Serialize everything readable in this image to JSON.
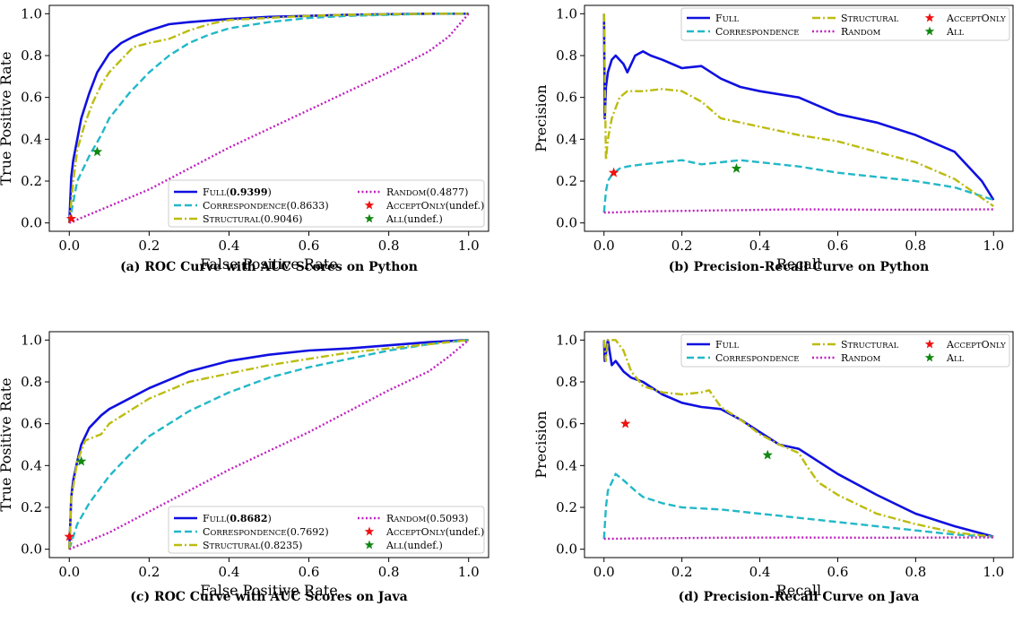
{
  "colors": {
    "Full": "#1010e0",
    "Correspondence": "#22b8c8",
    "Structural": "#bcbc10",
    "Random": "#c020c0",
    "AcceptOnly": "#ee1111",
    "All": "#118811"
  },
  "chart_data": [
    {
      "id": "a",
      "type": "line",
      "caption": "(a) ROC Curve with AUC Scores on Python",
      "xlabel": "False Positive Rate",
      "ylabel": "True Positive Rate",
      "xlim": [
        -0.05,
        1.05
      ],
      "ylim": [
        -0.04,
        1.04
      ],
      "xticks": [
        "0.0",
        "0.2",
        "0.4",
        "0.6",
        "0.8",
        "1.0"
      ],
      "yticks": [
        "0.0",
        "0.2",
        "0.4",
        "0.6",
        "0.8",
        "1.0"
      ],
      "legend_position": "lower-right",
      "series": [
        {
          "key": "Full",
          "name": "Full",
          "score": "0.9399",
          "bold": true,
          "style": "solid",
          "x": [
            0,
            0.005,
            0.01,
            0.02,
            0.03,
            0.05,
            0.07,
            0.1,
            0.13,
            0.16,
            0.2,
            0.25,
            0.3,
            0.4,
            0.5,
            0.6,
            0.7,
            0.8,
            0.9,
            1.0
          ],
          "y": [
            0,
            0.22,
            0.3,
            0.4,
            0.5,
            0.62,
            0.72,
            0.81,
            0.86,
            0.89,
            0.92,
            0.95,
            0.96,
            0.975,
            0.985,
            0.99,
            0.995,
            0.998,
            1.0,
            1.0
          ]
        },
        {
          "key": "Correspondence",
          "name": "Correspondence",
          "score": "0.8633",
          "bold": false,
          "style": "dashed",
          "x": [
            0,
            0.02,
            0.05,
            0.08,
            0.1,
            0.15,
            0.2,
            0.25,
            0.3,
            0.35,
            0.4,
            0.5,
            0.6,
            0.7,
            0.8,
            0.9,
            1.0
          ],
          "y": [
            0,
            0.2,
            0.32,
            0.42,
            0.5,
            0.62,
            0.72,
            0.8,
            0.86,
            0.9,
            0.93,
            0.96,
            0.98,
            0.99,
            0.995,
            1.0,
            1.0
          ]
        },
        {
          "key": "Structural",
          "name": "Structural",
          "score": "0.9046",
          "bold": false,
          "style": "dashdot",
          "x": [
            0,
            0.01,
            0.02,
            0.04,
            0.06,
            0.08,
            0.1,
            0.13,
            0.16,
            0.2,
            0.25,
            0.3,
            0.35,
            0.4,
            0.5,
            0.6,
            0.7,
            0.8,
            0.9,
            1.0
          ],
          "y": [
            0,
            0.2,
            0.35,
            0.48,
            0.58,
            0.66,
            0.72,
            0.78,
            0.84,
            0.86,
            0.88,
            0.92,
            0.95,
            0.97,
            0.98,
            0.99,
            0.995,
            0.998,
            1.0,
            1.0
          ]
        },
        {
          "key": "Random",
          "name": "Random",
          "score": "0.4877",
          "bold": false,
          "style": "dotted",
          "x": [
            0,
            0.05,
            0.1,
            0.2,
            0.3,
            0.4,
            0.5,
            0.6,
            0.7,
            0.8,
            0.9,
            0.95,
            1.0
          ],
          "y": [
            0,
            0.04,
            0.08,
            0.16,
            0.26,
            0.36,
            0.45,
            0.54,
            0.63,
            0.72,
            0.82,
            0.89,
            1.0
          ]
        }
      ],
      "markers": [
        {
          "key": "AcceptOnly",
          "name": "AcceptOnly",
          "score": "undef.",
          "x": 0.005,
          "y": 0.02
        },
        {
          "key": "All",
          "name": "All",
          "score": "undef.",
          "x": 0.07,
          "y": 0.34
        }
      ]
    },
    {
      "id": "b",
      "type": "line",
      "caption": "(b) Precision-Recall Curve on Python",
      "xlabel": "Recall",
      "ylabel": "Precision",
      "xlim": [
        -0.05,
        1.05
      ],
      "ylim": [
        -0.04,
        1.04
      ],
      "xticks": [
        "0.0",
        "0.2",
        "0.4",
        "0.6",
        "0.8",
        "1.0"
      ],
      "yticks": [
        "0.0",
        "0.2",
        "0.4",
        "0.6",
        "0.8",
        "1.0"
      ],
      "legend_position": "top-right",
      "series": [
        {
          "key": "Full",
          "name": "Full",
          "score": "",
          "bold": false,
          "style": "solid",
          "x": [
            0,
            0.002,
            0.005,
            0.01,
            0.02,
            0.03,
            0.05,
            0.06,
            0.08,
            0.1,
            0.12,
            0.15,
            0.2,
            0.25,
            0.3,
            0.35,
            0.4,
            0.5,
            0.6,
            0.7,
            0.8,
            0.9,
            0.97,
            1.0
          ],
          "y": [
            1.0,
            0.5,
            0.65,
            0.72,
            0.78,
            0.8,
            0.76,
            0.72,
            0.8,
            0.82,
            0.8,
            0.78,
            0.74,
            0.75,
            0.69,
            0.65,
            0.63,
            0.6,
            0.52,
            0.48,
            0.42,
            0.34,
            0.2,
            0.11
          ]
        },
        {
          "key": "Correspondence",
          "name": "Correspondence",
          "score": "",
          "bold": false,
          "style": "dashed",
          "x": [
            0,
            0.005,
            0.01,
            0.02,
            0.04,
            0.06,
            0.1,
            0.15,
            0.2,
            0.25,
            0.3,
            0.35,
            0.4,
            0.5,
            0.6,
            0.7,
            0.8,
            0.9,
            1.0
          ],
          "y": [
            0.05,
            0.15,
            0.2,
            0.23,
            0.26,
            0.27,
            0.28,
            0.29,
            0.3,
            0.28,
            0.29,
            0.3,
            0.29,
            0.27,
            0.24,
            0.22,
            0.2,
            0.17,
            0.11
          ]
        },
        {
          "key": "Structural",
          "name": "Structural",
          "score": "",
          "bold": false,
          "style": "dashdot",
          "x": [
            0,
            0.005,
            0.01,
            0.02,
            0.04,
            0.06,
            0.1,
            0.15,
            0.2,
            0.25,
            0.3,
            0.4,
            0.5,
            0.6,
            0.7,
            0.8,
            0.9,
            1.0
          ],
          "y": [
            1.0,
            0.3,
            0.4,
            0.5,
            0.6,
            0.63,
            0.63,
            0.64,
            0.63,
            0.58,
            0.5,
            0.46,
            0.42,
            0.39,
            0.34,
            0.29,
            0.21,
            0.08
          ]
        },
        {
          "key": "Random",
          "name": "Random",
          "score": "",
          "bold": false,
          "style": "dotted",
          "x": [
            0,
            0.02,
            0.1,
            0.3,
            0.5,
            0.7,
            0.9,
            1.0
          ],
          "y": [
            0.05,
            0.05,
            0.055,
            0.06,
            0.065,
            0.063,
            0.064,
            0.065
          ]
        }
      ],
      "markers": [
        {
          "key": "AcceptOnly",
          "name": "AcceptOnly",
          "score": "",
          "x": 0.025,
          "y": 0.24
        },
        {
          "key": "All",
          "name": "All",
          "score": "",
          "x": 0.34,
          "y": 0.26
        }
      ]
    },
    {
      "id": "c",
      "type": "line",
      "caption": "(c) ROC Curve with AUC Scores on Java",
      "xlabel": "False Positive Rate",
      "ylabel": "True Positive Rate",
      "xlim": [
        -0.05,
        1.05
      ],
      "ylim": [
        -0.04,
        1.04
      ],
      "xticks": [
        "0.0",
        "0.2",
        "0.4",
        "0.6",
        "0.8",
        "1.0"
      ],
      "yticks": [
        "0.0",
        "0.2",
        "0.4",
        "0.6",
        "0.8",
        "1.0"
      ],
      "legend_position": "lower-right",
      "series": [
        {
          "key": "Full",
          "name": "Full",
          "score": "0.8682",
          "bold": true,
          "style": "solid",
          "x": [
            0,
            0.005,
            0.01,
            0.02,
            0.03,
            0.05,
            0.08,
            0.1,
            0.15,
            0.2,
            0.25,
            0.3,
            0.4,
            0.5,
            0.6,
            0.7,
            0.8,
            0.9,
            1.0
          ],
          "y": [
            0,
            0.25,
            0.33,
            0.42,
            0.5,
            0.58,
            0.64,
            0.67,
            0.72,
            0.77,
            0.81,
            0.85,
            0.9,
            0.93,
            0.95,
            0.96,
            0.975,
            0.99,
            1.0
          ]
        },
        {
          "key": "Correspondence",
          "name": "Correspondence",
          "score": "0.7692",
          "bold": false,
          "style": "dashed",
          "x": [
            0,
            0.02,
            0.05,
            0.1,
            0.15,
            0.2,
            0.25,
            0.3,
            0.4,
            0.5,
            0.6,
            0.7,
            0.8,
            0.9,
            1.0
          ],
          "y": [
            0,
            0.12,
            0.22,
            0.35,
            0.45,
            0.54,
            0.6,
            0.66,
            0.75,
            0.82,
            0.87,
            0.91,
            0.95,
            0.98,
            1.0
          ]
        },
        {
          "key": "Structural",
          "name": "Structural",
          "score": "0.8235",
          "bold": false,
          "style": "dashdot",
          "x": [
            0,
            0.005,
            0.01,
            0.02,
            0.04,
            0.08,
            0.1,
            0.15,
            0.2,
            0.25,
            0.3,
            0.4,
            0.5,
            0.6,
            0.7,
            0.8,
            0.9,
            1.0
          ],
          "y": [
            0,
            0.25,
            0.3,
            0.42,
            0.52,
            0.55,
            0.6,
            0.66,
            0.72,
            0.76,
            0.8,
            0.84,
            0.88,
            0.91,
            0.94,
            0.96,
            0.98,
            1.0
          ]
        },
        {
          "key": "Random",
          "name": "Random",
          "score": "0.5093",
          "bold": false,
          "style": "dotted",
          "x": [
            0,
            0.05,
            0.1,
            0.2,
            0.3,
            0.4,
            0.5,
            0.6,
            0.7,
            0.8,
            0.9,
            0.95,
            1.0
          ],
          "y": [
            0,
            0.04,
            0.08,
            0.18,
            0.28,
            0.38,
            0.47,
            0.56,
            0.66,
            0.76,
            0.85,
            0.92,
            1.0
          ]
        }
      ],
      "markers": [
        {
          "key": "AcceptOnly",
          "name": "AcceptOnly",
          "score": "undef.",
          "x": 0.0,
          "y": 0.06
        },
        {
          "key": "All",
          "name": "All",
          "score": "undef.",
          "x": 0.03,
          "y": 0.42
        }
      ]
    },
    {
      "id": "d",
      "type": "line",
      "caption": "(d) Precision-Recall Curve on Java",
      "xlabel": "Recall",
      "ylabel": "Precision",
      "xlim": [
        -0.05,
        1.05
      ],
      "ylim": [
        -0.04,
        1.04
      ],
      "xticks": [
        "0.0",
        "0.2",
        "0.4",
        "0.6",
        "0.8",
        "1.0"
      ],
      "yticks": [
        "0.0",
        "0.2",
        "0.4",
        "0.6",
        "0.8",
        "1.0"
      ],
      "legend_position": "top-right",
      "series": [
        {
          "key": "Full",
          "name": "Full",
          "score": "",
          "bold": false,
          "style": "solid",
          "x": [
            0,
            0.002,
            0.01,
            0.02,
            0.03,
            0.05,
            0.07,
            0.1,
            0.15,
            0.2,
            0.25,
            0.3,
            0.35,
            0.4,
            0.45,
            0.5,
            0.55,
            0.6,
            0.7,
            0.8,
            0.9,
            1.0
          ],
          "y": [
            1.0,
            0.9,
            1.0,
            0.88,
            0.9,
            0.85,
            0.82,
            0.8,
            0.74,
            0.7,
            0.68,
            0.67,
            0.62,
            0.56,
            0.5,
            0.48,
            0.42,
            0.36,
            0.26,
            0.17,
            0.11,
            0.06
          ]
        },
        {
          "key": "Correspondence",
          "name": "Correspondence",
          "score": "",
          "bold": false,
          "style": "dashed",
          "x": [
            0,
            0.005,
            0.01,
            0.02,
            0.03,
            0.05,
            0.08,
            0.1,
            0.15,
            0.2,
            0.3,
            0.4,
            0.5,
            0.6,
            0.7,
            0.8,
            0.9,
            1.0
          ],
          "y": [
            0.05,
            0.2,
            0.28,
            0.32,
            0.36,
            0.33,
            0.28,
            0.25,
            0.22,
            0.2,
            0.19,
            0.17,
            0.15,
            0.13,
            0.11,
            0.09,
            0.07,
            0.06
          ]
        },
        {
          "key": "Structural",
          "name": "Structural",
          "score": "",
          "bold": false,
          "style": "dashdot",
          "x": [
            0,
            0.005,
            0.01,
            0.03,
            0.05,
            0.07,
            0.1,
            0.15,
            0.2,
            0.25,
            0.27,
            0.3,
            0.35,
            0.4,
            0.45,
            0.5,
            0.52,
            0.55,
            0.6,
            0.7,
            0.8,
            0.9,
            1.0
          ],
          "y": [
            1.0,
            0.9,
            1.0,
            1.0,
            0.95,
            0.85,
            0.78,
            0.75,
            0.74,
            0.75,
            0.76,
            0.68,
            0.62,
            0.55,
            0.5,
            0.46,
            0.4,
            0.32,
            0.26,
            0.17,
            0.12,
            0.08,
            0.06
          ]
        },
        {
          "key": "Random",
          "name": "Random",
          "score": "",
          "bold": false,
          "style": "dotted",
          "x": [
            0,
            0.02,
            0.1,
            0.3,
            0.5,
            0.7,
            0.9,
            1.0
          ],
          "y": [
            0.05,
            0.05,
            0.052,
            0.055,
            0.056,
            0.055,
            0.056,
            0.056
          ]
        }
      ],
      "markers": [
        {
          "key": "AcceptOnly",
          "name": "AcceptOnly",
          "score": "",
          "x": 0.055,
          "y": 0.6
        },
        {
          "key": "All",
          "name": "All",
          "score": "",
          "x": 0.42,
          "y": 0.45
        }
      ]
    }
  ]
}
